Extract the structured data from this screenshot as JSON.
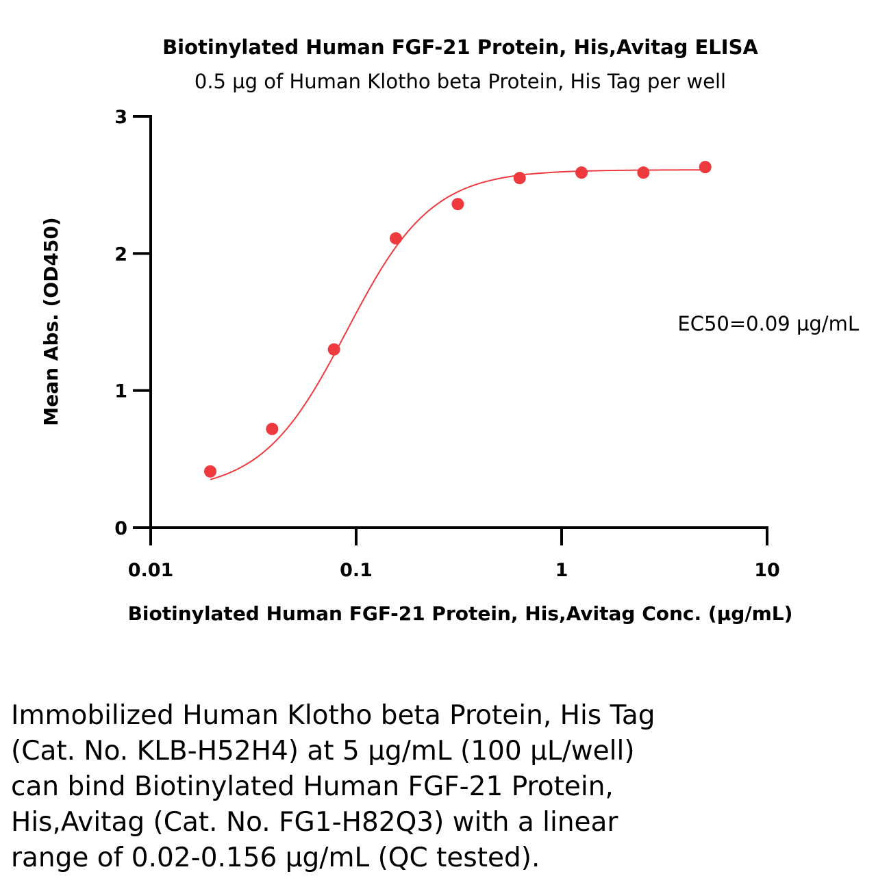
{
  "chart_data": {
    "type": "scatter",
    "title": "Biotinylated Human FGF-21 Protein, His,Avitag ELISA",
    "subtitle": "0.5 µg of Human Klotho beta Protein, His Tag per well",
    "xlabel": "Biotinylated Human FGF-21 Protein, His,Avitag Conc. (µg/mL)",
    "ylabel": "Mean Abs. (OD450)",
    "x_scale": "log",
    "xlim": [
      0.01,
      10
    ],
    "ylim": [
      0,
      3
    ],
    "x_ticks": [
      0.01,
      0.1,
      1,
      10
    ],
    "x_tick_labels": [
      "0.01",
      "0.1",
      "1",
      "10"
    ],
    "y_ticks": [
      0,
      1,
      2,
      3
    ],
    "y_tick_labels": [
      "0",
      "1",
      "2",
      "3"
    ],
    "annotation": "EC50=0.09 µg/mL",
    "color": "#ee3a3f",
    "series": [
      {
        "x": [
          0.0195,
          0.039,
          0.078,
          0.156,
          0.3125,
          0.625,
          1.25,
          2.5,
          5
        ],
        "y": [
          0.41,
          0.72,
          1.3,
          2.11,
          2.36,
          2.55,
          2.59,
          2.59,
          2.63
        ],
        "fit": {
          "model": "4PL",
          "bottom": 0.26,
          "top": 2.61,
          "ec50": 0.09,
          "hill": 2.1
        }
      }
    ],
    "grid": false,
    "legend": "none"
  },
  "caption": {
    "lines": [
      "Immobilized Human Klotho beta Protein, His Tag",
      "(Cat. No. KLB-H52H4) at 5 µg/mL (100 µL/well)",
      "can bind Biotinylated Human FGF-21 Protein,",
      "His,Avitag (Cat. No. FG1-H82Q3) with a linear",
      "range of 0.02-0.156 µg/mL (QC tested)."
    ]
  }
}
